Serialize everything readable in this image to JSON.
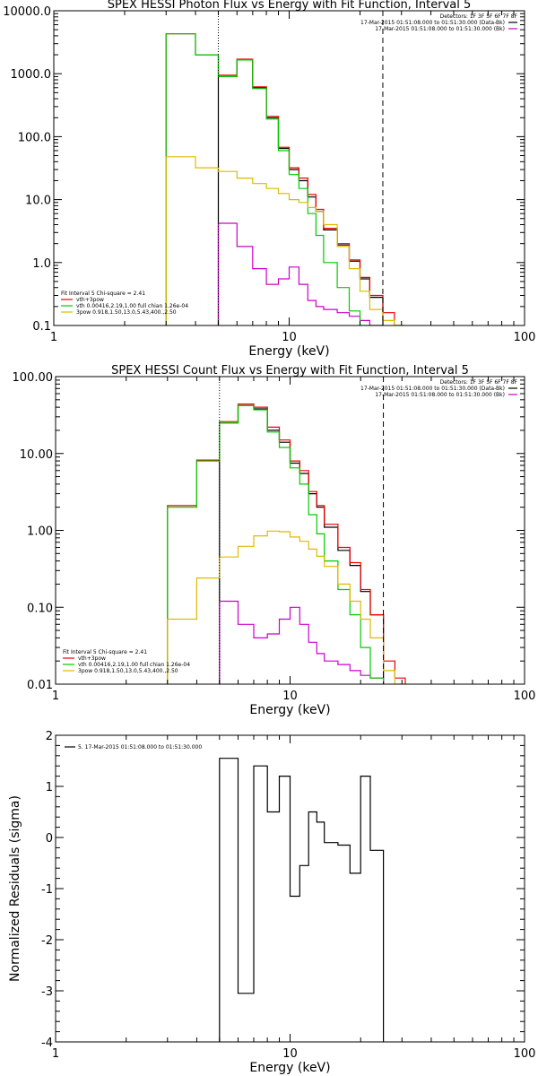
{
  "chart_data": [
    {
      "type": "line",
      "title": "SPEX HESSI Photon Flux vs Energy with Fit Function, Interval 5",
      "xlabel": "Energy (keV)",
      "ylabel": "",
      "xscale": "log",
      "yscale": "log",
      "xlim": [
        1,
        100
      ],
      "ylim": [
        0.1,
        10000
      ],
      "xticks": [
        {
          "v": 1,
          "label": "1"
        },
        {
          "v": 10,
          "label": "10"
        },
        {
          "v": 100,
          "label": "100"
        }
      ],
      "yticks": [
        {
          "v": 10000,
          "label": "10000.0"
        },
        {
          "v": 1000,
          "label": "1000.0"
        },
        {
          "v": 100,
          "label": "100.0"
        },
        {
          "v": 10,
          "label": "10.0"
        },
        {
          "v": 1,
          "label": "1.0"
        },
        {
          "v": 0.1,
          "label": "0.1"
        }
      ],
      "vlines": [
        {
          "x": 5,
          "style": "dotted"
        },
        {
          "x": 25,
          "style": "dashed"
        }
      ],
      "edges": [
        3,
        4,
        5,
        6,
        7,
        8,
        9,
        10,
        11,
        12,
        13,
        14,
        16,
        18,
        20,
        22,
        25,
        28,
        31
      ],
      "legend_tr": [
        {
          "text": "Detectors: 1F 3F 5F 6F 7F 8F",
          "color": "#000000",
          "line": false
        },
        {
          "text": "17-Mar-2015 01:51:08.000 to 01:51:30.000 (Data-Bk)",
          "color": "#000000",
          "line": true
        },
        {
          "text": "17-Mar-2015 01:51:08.000 to 01:51:30.000 (Bk)",
          "color": "#cc00cc",
          "line": true
        }
      ],
      "legend_bl": [
        {
          "text": "Fit Interval 5   Chi-square = 2.41",
          "color": "#000000",
          "line": false
        },
        {
          "text": "vth+3pow",
          "color": "#ee0000",
          "line": true
        },
        {
          "text": "vth 0.00416,2.19,1.00  full chian 1.26e-04",
          "color": "#00cc00",
          "line": true
        },
        {
          "text": "3pow 0.918,1.50,13.0,5.43,400.,2.50",
          "color": "#ddbb00",
          "line": true
        }
      ],
      "series": [
        {
          "name": "17-Mar-2015 01:51:08.000 to 01:51:30.000 (Data-Bk)",
          "color": "#000000",
          "values": [
            null,
            null,
            900,
            1650,
            600,
            200,
            65,
            30,
            20,
            11,
            6.5,
            3.3,
            1.9,
            1.05,
            0.55,
            0.28,
            null,
            null
          ]
        },
        {
          "name": "17-Mar-2015 01:51:08.000 to 01:51:30.000 (Bk)",
          "color": "#cc00cc",
          "values": [
            null,
            null,
            4.2,
            1.8,
            0.8,
            0.45,
            0.55,
            0.85,
            0.45,
            0.25,
            0.2,
            0.18,
            0.16,
            0.14,
            0.12,
            0.1,
            null,
            null
          ]
        },
        {
          "name": "vth+3pow",
          "color": "#ee0000",
          "values": [
            4300,
            2000,
            950,
            1700,
            620,
            210,
            68,
            32,
            22,
            12,
            7,
            3.5,
            2,
            1.1,
            0.58,
            0.3,
            0.16,
            0.1
          ]
        },
        {
          "name": "vth",
          "color": "#00cc00",
          "values": [
            4300,
            2000,
            900,
            1650,
            580,
            190,
            60,
            25,
            15,
            6,
            2.7,
            1,
            0.4,
            0.17,
            0.1,
            0.1,
            null,
            null
          ]
        },
        {
          "name": "3pow",
          "color": "#ddbb00",
          "values": [
            48,
            32,
            28,
            22,
            18,
            15,
            12.5,
            10,
            9,
            7.5,
            6.5,
            4,
            1.8,
            0.8,
            0.35,
            0.18,
            0.12,
            0.1
          ]
        }
      ]
    },
    {
      "type": "line",
      "title": "SPEX HESSI Count Flux vs Energy with Fit Function, Interval 5",
      "xlabel": "Energy (keV)",
      "ylabel": "",
      "xscale": "log",
      "yscale": "log",
      "xlim": [
        1,
        100
      ],
      "ylim": [
        0.01,
        100
      ],
      "xticks": [
        {
          "v": 1,
          "label": "1"
        },
        {
          "v": 10,
          "label": "10"
        },
        {
          "v": 100,
          "label": "100"
        }
      ],
      "yticks": [
        {
          "v": 100,
          "label": "100.00"
        },
        {
          "v": 10,
          "label": "10.00"
        },
        {
          "v": 1,
          "label": "1.00"
        },
        {
          "v": 0.1,
          "label": "0.10"
        },
        {
          "v": 0.01,
          "label": "0.01"
        }
      ],
      "vlines": [
        {
          "x": 5,
          "style": "dotted"
        },
        {
          "x": 25,
          "style": "dashed"
        }
      ],
      "edges": [
        3,
        4,
        5,
        6,
        7,
        8,
        9,
        10,
        11,
        12,
        13,
        14,
        16,
        18,
        20,
        22,
        25,
        28,
        31
      ],
      "legend_tr": [
        {
          "text": "Detectors: 1F 3F 5F 6F 7F 8F",
          "color": "#000000",
          "line": false
        },
        {
          "text": "17-Mar-2015 01:51:08.000 to 01:51:30.000 (Data-Bk)",
          "color": "#000000",
          "line": true
        },
        {
          "text": "17-Mar-2015 01:51:08.000 to 01:51:30.000 (Bk)",
          "color": "#cc00cc",
          "line": true
        }
      ],
      "legend_bl": [
        {
          "text": "Fit Interval 5   Chi-square = 2.41",
          "color": "#000000",
          "line": false
        },
        {
          "text": "vth+3pow",
          "color": "#ee0000",
          "line": true
        },
        {
          "text": "vth 0.00416,2.19,1.00  full chian 1.26e-04",
          "color": "#00cc00",
          "line": true
        },
        {
          "text": "3pow 0.918,1.50,13.0,5.43,400.,2.50",
          "color": "#ddbb00",
          "line": true
        }
      ],
      "series": [
        {
          "name": "17-Mar-2015 01:51:08.000 to 01:51:30.000 (Data-Bk)",
          "color": "#000000",
          "values": [
            null,
            null,
            25,
            42,
            38,
            20,
            14,
            7.5,
            5.5,
            3,
            2,
            1.1,
            0.55,
            0.35,
            0.16,
            0.08,
            null,
            null
          ]
        },
        {
          "name": "17-Mar-2015 01:51:08.000 to 01:51:30.000 (Bk)",
          "color": "#cc00cc",
          "values": [
            null,
            null,
            0.12,
            0.06,
            0.04,
            0.045,
            0.07,
            0.1,
            0.06,
            0.035,
            0.025,
            0.02,
            0.018,
            0.015,
            0.013,
            0.012,
            null,
            null
          ]
        },
        {
          "name": "vth+3pow",
          "color": "#ee0000",
          "values": [
            2.1,
            8.2,
            26,
            44,
            40,
            22,
            15,
            8,
            6,
            3.2,
            2.1,
            1.2,
            0.6,
            0.38,
            0.17,
            0.08,
            0.02,
            0.012
          ]
        },
        {
          "name": "vth",
          "color": "#00cc00",
          "values": [
            2,
            8,
            25,
            42,
            37,
            19,
            12,
            6.5,
            4,
            1.6,
            0.9,
            0.4,
            0.17,
            0.08,
            0.03,
            0.012,
            null,
            null
          ]
        },
        {
          "name": "3pow",
          "color": "#ddbb00",
          "values": [
            0.07,
            0.24,
            0.45,
            0.62,
            0.85,
            0.98,
            0.96,
            0.82,
            0.72,
            0.57,
            0.46,
            0.34,
            0.2,
            0.12,
            0.07,
            0.04,
            0.015,
            0.01
          ]
        }
      ]
    },
    {
      "type": "line",
      "title": "",
      "xlabel": "Energy (keV)",
      "ylabel": "Normalized Residuals (sigma)",
      "xscale": "log",
      "yscale": "linear",
      "xlim": [
        1,
        100
      ],
      "ylim": [
        -4,
        2
      ],
      "xticks": [
        {
          "v": 1,
          "label": "1"
        },
        {
          "v": 10,
          "label": "10"
        },
        {
          "v": 100,
          "label": "100"
        }
      ],
      "yticks": [
        {
          "v": 2,
          "label": "2"
        },
        {
          "v": 1,
          "label": "1"
        },
        {
          "v": 0,
          "label": "0"
        },
        {
          "v": -1,
          "label": "-1"
        },
        {
          "v": -2,
          "label": "-2"
        },
        {
          "v": -3,
          "label": "-3"
        },
        {
          "v": -4,
          "label": "-4"
        }
      ],
      "vlines": [],
      "edges": [
        5,
        6,
        7,
        8,
        9,
        10,
        11,
        12,
        13,
        14,
        16,
        18,
        20,
        22,
        25
      ],
      "legend_tr": [],
      "legend_bl": [],
      "legend_tl": [
        {
          "text": "5. 17-Mar-2015 01:51:08.000 to 01:51:30.000",
          "color": "#000000",
          "line": true
        }
      ],
      "series": [
        {
          "name": "5. 17-Mar-2015 01:51:08.000 to 01:51:30.000",
          "color": "#000000",
          "values": [
            1.55,
            -3.05,
            1.4,
            0.5,
            1.2,
            -1.15,
            -0.55,
            0.5,
            0.3,
            -0.1,
            -0.15,
            -0.7,
            1.2,
            -0.25
          ]
        }
      ]
    }
  ]
}
